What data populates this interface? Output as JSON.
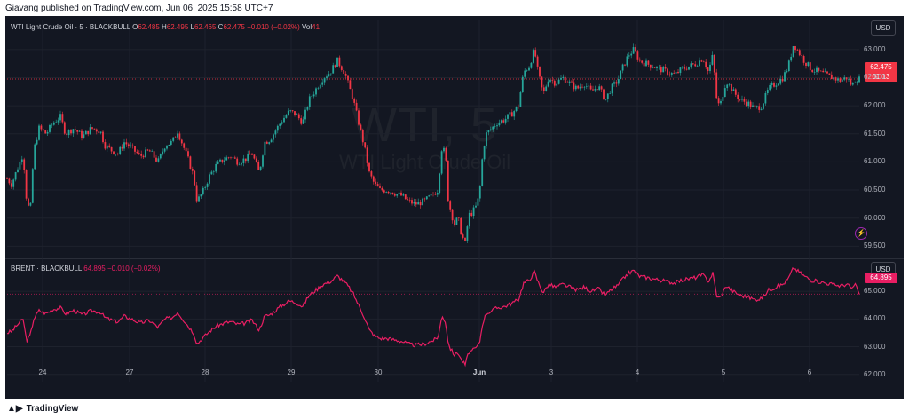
{
  "publish_info": "Giavang published on TradingView.com, Jun 06, 2025 15:58 UTC+7",
  "footer": {
    "brand": "TradingView"
  },
  "colors": {
    "up": "#26a69a",
    "down": "#f23645",
    "brent_line": "#e91e63",
    "background": "#131722",
    "grid": "#1e222d"
  },
  "chart_data": [
    {
      "type": "candlestick",
      "title": "WTI Light Crude Oil · 5 · BLACKBULL",
      "legend": {
        "symbol": "WTI Light Crude Oil · 5 · BLACKBULL",
        "O": "62.485",
        "H": "62.495",
        "L": "62.465",
        "C": "62.475",
        "chg": "−0.010 (−0.02%)",
        "vol_label": "Vol",
        "vol": "41"
      },
      "watermark": {
        "symbol": "WTI, 5",
        "name": "WTI Light Crude Oil"
      },
      "currency": "USD",
      "last_price": "62.475",
      "countdown": "01:13",
      "ylim": [
        59.3,
        63.25
      ],
      "y_ticks": [
        "63.000",
        "62.500",
        "62.000",
        "61.500",
        "61.000",
        "60.500",
        "60.000",
        "59.500"
      ],
      "y_tick_values": [
        63.0,
        62.5,
        62.0,
        61.5,
        61.0,
        60.5,
        60.0,
        59.5
      ],
      "x_tick_labels": [
        "24",
        "27",
        "28",
        "29",
        "30",
        "Jun",
        "3",
        "4",
        "5",
        "6"
      ],
      "close_path": [
        [
          0,
          60.7
        ],
        [
          5,
          60.6
        ],
        [
          12,
          60.9
        ],
        [
          18,
          61.15
        ],
        [
          22,
          60.3
        ],
        [
          26,
          60.1
        ],
        [
          30,
          61.2
        ],
        [
          36,
          61.6
        ],
        [
          44,
          61.5
        ],
        [
          52,
          61.7
        ],
        [
          60,
          61.8
        ],
        [
          66,
          61.5
        ],
        [
          75,
          61.6
        ],
        [
          85,
          61.45
        ],
        [
          95,
          61.6
        ],
        [
          105,
          61.55
        ],
        [
          110,
          61.3
        ],
        [
          118,
          61.2
        ],
        [
          125,
          61.15
        ],
        [
          132,
          61.35
        ],
        [
          140,
          61.25
        ],
        [
          150,
          61.1
        ],
        [
          160,
          61.2
        ],
        [
          170,
          61.0
        ],
        [
          178,
          61.3
        ],
        [
          186,
          61.35
        ],
        [
          192,
          61.55
        ],
        [
          198,
          61.3
        ],
        [
          205,
          61.0
        ],
        [
          210,
          60.75
        ],
        [
          214,
          60.3
        ],
        [
          220,
          60.45
        ],
        [
          228,
          60.75
        ],
        [
          236,
          60.95
        ],
        [
          245,
          61.05
        ],
        [
          252,
          61.1
        ],
        [
          260,
          61.0
        ],
        [
          268,
          61.05
        ],
        [
          276,
          61.15
        ],
        [
          284,
          60.8
        ],
        [
          290,
          61.35
        ],
        [
          296,
          61.4
        ],
        [
          304,
          61.6
        ],
        [
          310,
          61.75
        ],
        [
          318,
          61.9
        ],
        [
          325,
          61.85
        ],
        [
          333,
          61.7
        ],
        [
          340,
          62.1
        ],
        [
          348,
          62.3
        ],
        [
          356,
          62.5
        ],
        [
          364,
          62.6
        ],
        [
          372,
          62.8
        ],
        [
          380,
          62.6
        ],
        [
          386,
          62.3
        ],
        [
          390,
          62.1
        ],
        [
          396,
          61.7
        ],
        [
          402,
          61.3
        ],
        [
          408,
          60.8
        ],
        [
          414,
          60.6
        ],
        [
          420,
          60.5
        ],
        [
          428,
          60.5
        ],
        [
          436,
          60.45
        ],
        [
          444,
          60.4
        ],
        [
          452,
          60.3
        ],
        [
          460,
          60.25
        ],
        [
          470,
          60.3
        ],
        [
          478,
          60.4
        ],
        [
          485,
          60.5
        ],
        [
          490,
          61.3
        ],
        [
          494,
          61.1
        ],
        [
          497,
          60.3
        ],
        [
          500,
          60.1
        ],
        [
          504,
          59.9
        ],
        [
          508,
          60.0
        ],
        [
          512,
          59.7
        ],
        [
          516,
          59.55
        ],
        [
          520,
          60.05
        ],
        [
          524,
          60.1
        ],
        [
          528,
          60.2
        ],
        [
          532,
          60.4
        ],
        [
          536,
          61.2
        ],
        [
          540,
          61.5
        ],
        [
          546,
          61.6
        ],
        [
          552,
          61.7
        ],
        [
          560,
          61.75
        ],
        [
          568,
          61.85
        ],
        [
          576,
          62.0
        ],
        [
          582,
          62.6
        ],
        [
          588,
          62.7
        ],
        [
          594,
          63.0
        ],
        [
          598,
          62.6
        ],
        [
          604,
          62.2
        ],
        [
          610,
          62.5
        ],
        [
          618,
          62.4
        ],
        [
          626,
          62.5
        ],
        [
          634,
          62.4
        ],
        [
          642,
          62.3
        ],
        [
          650,
          62.4
        ],
        [
          658,
          62.25
        ],
        [
          666,
          62.35
        ],
        [
          674,
          62.1
        ],
        [
          680,
          62.3
        ],
        [
          688,
          62.45
        ],
        [
          694,
          62.7
        ],
        [
          700,
          62.9
        ],
        [
          706,
          63.0
        ],
        [
          712,
          62.8
        ],
        [
          720,
          62.75
        ],
        [
          728,
          62.7
        ],
        [
          736,
          62.65
        ],
        [
          744,
          62.6
        ],
        [
          752,
          62.55
        ],
        [
          760,
          62.65
        ],
        [
          768,
          62.7
        ],
        [
          776,
          62.75
        ],
        [
          784,
          62.85
        ],
        [
          790,
          62.6
        ],
        [
          795,
          62.9
        ],
        [
          800,
          62.0
        ],
        [
          804,
          62.05
        ],
        [
          810,
          62.45
        ],
        [
          818,
          62.25
        ],
        [
          826,
          62.1
        ],
        [
          834,
          62.05
        ],
        [
          842,
          61.95
        ],
        [
          850,
          62.0
        ],
        [
          858,
          62.3
        ],
        [
          866,
          62.4
        ],
        [
          874,
          62.5
        ],
        [
          880,
          62.7
        ],
        [
          886,
          63.1
        ],
        [
          892,
          62.95
        ],
        [
          898,
          62.8
        ],
        [
          906,
          62.65
        ],
        [
          914,
          62.6
        ],
        [
          922,
          62.55
        ],
        [
          930,
          62.5
        ],
        [
          938,
          62.45
        ],
        [
          946,
          62.5
        ],
        [
          952,
          62.35
        ],
        [
          956,
          62.48
        ],
        [
          960,
          62.475
        ]
      ]
    },
    {
      "type": "line",
      "title": "BRENT · BLACKBULL",
      "legend": {
        "symbol": "BRENT · BLACKBULL",
        "value": "64.895",
        "chg": "−0.010 (−0.02%)"
      },
      "currency": "USD",
      "last_price": "64.895",
      "ylim": [
        61.8,
        65.9
      ],
      "y_ticks": [
        "65.000",
        "64.000",
        "63.000",
        "62.000"
      ],
      "y_tick_values": [
        65.0,
        64.0,
        63.0,
        62.0
      ],
      "x": [
        0,
        5,
        12,
        18,
        22,
        26,
        30,
        36,
        44,
        52,
        60,
        66,
        75,
        85,
        95,
        105,
        110,
        118,
        125,
        132,
        140,
        150,
        160,
        170,
        178,
        186,
        192,
        198,
        205,
        210,
        214,
        220,
        228,
        236,
        245,
        252,
        260,
        268,
        276,
        284,
        290,
        296,
        304,
        310,
        318,
        325,
        333,
        340,
        348,
        356,
        364,
        372,
        380,
        386,
        390,
        396,
        402,
        408,
        414,
        420,
        428,
        436,
        444,
        452,
        460,
        470,
        478,
        485,
        490,
        494,
        497,
        500,
        504,
        508,
        512,
        516,
        520,
        524,
        528,
        532,
        536,
        540,
        546,
        552,
        560,
        568,
        576,
        582,
        588,
        594,
        598,
        604,
        610,
        618,
        626,
        634,
        642,
        650,
        658,
        666,
        674,
        680,
        688,
        694,
        700,
        706,
        712,
        720,
        728,
        736,
        744,
        752,
        760,
        768,
        776,
        784,
        790,
        795,
        800,
        804,
        810,
        818,
        826,
        834,
        842,
        850,
        858,
        866,
        874,
        880,
        886,
        892,
        898,
        906,
        914,
        922,
        930,
        938,
        946,
        952,
        956,
        960
      ],
      "values": [
        63.5,
        63.55,
        63.8,
        64.0,
        63.2,
        63.4,
        64.0,
        64.3,
        64.2,
        64.35,
        64.4,
        64.2,
        64.3,
        64.15,
        64.3,
        64.25,
        64.05,
        63.95,
        63.9,
        64.1,
        64.0,
        63.85,
        63.95,
        63.7,
        64.0,
        64.05,
        64.25,
        64.0,
        63.7,
        63.5,
        63.1,
        63.3,
        63.55,
        63.75,
        63.85,
        63.9,
        63.8,
        63.85,
        63.95,
        63.6,
        64.1,
        64.15,
        64.35,
        64.5,
        64.65,
        64.6,
        64.45,
        64.85,
        65.05,
        65.25,
        65.35,
        65.55,
        65.35,
        65.1,
        64.9,
        64.5,
        64.1,
        63.6,
        63.4,
        63.3,
        63.3,
        63.25,
        63.2,
        63.1,
        63.05,
        63.1,
        63.2,
        63.3,
        64.1,
        63.9,
        63.1,
        62.9,
        62.7,
        62.8,
        62.5,
        62.35,
        62.8,
        62.85,
        62.95,
        63.1,
        63.9,
        64.2,
        64.3,
        64.4,
        64.45,
        64.55,
        64.7,
        65.3,
        65.4,
        65.7,
        65.35,
        64.95,
        65.25,
        65.15,
        65.25,
        65.15,
        65.05,
        65.15,
        65.0,
        65.1,
        64.85,
        65.05,
        65.2,
        65.45,
        65.65,
        65.75,
        65.55,
        65.5,
        65.45,
        65.4,
        65.35,
        65.3,
        65.4,
        65.45,
        65.5,
        65.6,
        65.35,
        65.65,
        64.75,
        64.8,
        65.2,
        65.0,
        64.85,
        64.8,
        64.7,
        64.75,
        65.05,
        65.15,
        65.25,
        65.45,
        65.85,
        65.7,
        65.55,
        65.4,
        65.35,
        65.3,
        65.25,
        65.2,
        65.25,
        65.1,
        65.23,
        64.895
      ]
    }
  ]
}
